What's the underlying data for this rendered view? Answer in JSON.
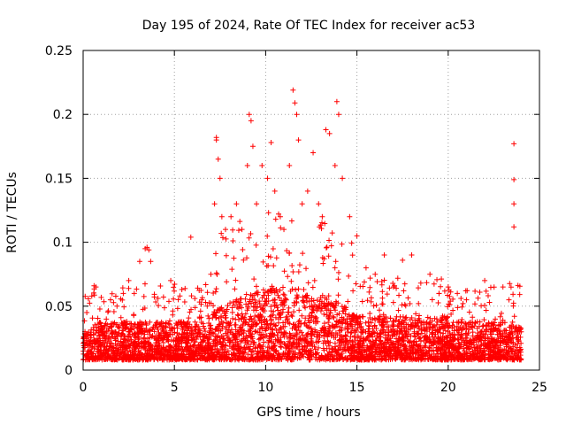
{
  "chart_data": {
    "type": "scatter",
    "title": "Day 195 of 2024, Rate Of TEC Index for receiver ac53",
    "xlabel": "GPS time / hours",
    "ylabel": "ROTI / TECUs",
    "xlim": [
      0,
      25
    ],
    "ylim": [
      0,
      0.25
    ],
    "x_ticks": [
      0,
      5,
      10,
      15,
      20,
      25
    ],
    "x_tick_labels": [
      "0",
      "5",
      "10",
      "15",
      "20",
      "25"
    ],
    "y_ticks": [
      0,
      0.05,
      0.1,
      0.15,
      0.2,
      0.25
    ],
    "y_tick_labels": [
      "0",
      "0.05",
      "0.1",
      "0.15",
      "0.2",
      "0.25"
    ],
    "grid": true,
    "legend": "none",
    "marker": "+",
    "marker_color": "#ff0000",
    "data_extent_hours": [
      0,
      24
    ],
    "series": [
      {
        "name": "ROTI",
        "note": "dense cloud of several thousand points; representative points below, bulk band ~0.01-0.04 across the day",
        "points": [
          [
            0.1,
            0.03
          ],
          [
            0.2,
            0.045
          ],
          [
            0.6,
            0.066
          ],
          [
            0.7,
            0.065
          ],
          [
            1.5,
            0.055
          ],
          [
            2.2,
            0.06
          ],
          [
            2.5,
            0.07
          ],
          [
            2.8,
            0.06
          ],
          [
            3.1,
            0.085
          ],
          [
            3.4,
            0.095
          ],
          [
            3.5,
            0.096
          ],
          [
            3.6,
            0.094
          ],
          [
            3.7,
            0.085
          ],
          [
            4.8,
            0.07
          ],
          [
            5.3,
            0.058
          ],
          [
            5.9,
            0.104
          ],
          [
            6.5,
            0.055
          ],
          [
            7.0,
            0.075
          ],
          [
            7.2,
            0.13
          ],
          [
            7.3,
            0.18
          ],
          [
            7.3,
            0.182
          ],
          [
            7.4,
            0.165
          ],
          [
            7.5,
            0.15
          ],
          [
            7.6,
            0.12
          ],
          [
            7.8,
            0.11
          ],
          [
            8.1,
            0.12
          ],
          [
            8.4,
            0.13
          ],
          [
            8.7,
            0.11
          ],
          [
            9.0,
            0.16
          ],
          [
            9.1,
            0.2
          ],
          [
            9.2,
            0.195
          ],
          [
            9.3,
            0.175
          ],
          [
            9.5,
            0.13
          ],
          [
            9.8,
            0.16
          ],
          [
            10.1,
            0.15
          ],
          [
            10.3,
            0.178
          ],
          [
            10.5,
            0.14
          ],
          [
            10.8,
            0.12
          ],
          [
            11.0,
            0.11
          ],
          [
            11.3,
            0.16
          ],
          [
            11.5,
            0.219
          ],
          [
            11.6,
            0.209
          ],
          [
            11.7,
            0.2
          ],
          [
            11.8,
            0.18
          ],
          [
            12.0,
            0.13
          ],
          [
            12.3,
            0.14
          ],
          [
            12.6,
            0.17
          ],
          [
            12.9,
            0.13
          ],
          [
            13.1,
            0.12
          ],
          [
            13.3,
            0.188
          ],
          [
            13.5,
            0.185
          ],
          [
            13.8,
            0.16
          ],
          [
            13.9,
            0.21
          ],
          [
            14.0,
            0.2
          ],
          [
            14.2,
            0.15
          ],
          [
            14.6,
            0.12
          ],
          [
            15.0,
            0.105
          ],
          [
            15.5,
            0.08
          ],
          [
            16.0,
            0.075
          ],
          [
            16.5,
            0.09
          ],
          [
            17.0,
            0.065
          ],
          [
            17.5,
            0.086
          ],
          [
            18.0,
            0.09
          ],
          [
            18.5,
            0.068
          ],
          [
            19.0,
            0.075
          ],
          [
            19.5,
            0.06
          ],
          [
            20.0,
            0.065
          ],
          [
            20.5,
            0.06
          ],
          [
            21.0,
            0.055
          ],
          [
            22.0,
            0.07
          ],
          [
            23.0,
            0.065
          ],
          [
            23.6,
            0.177
          ],
          [
            23.6,
            0.149
          ],
          [
            23.6,
            0.13
          ],
          [
            23.6,
            0.112
          ]
        ]
      }
    ]
  }
}
